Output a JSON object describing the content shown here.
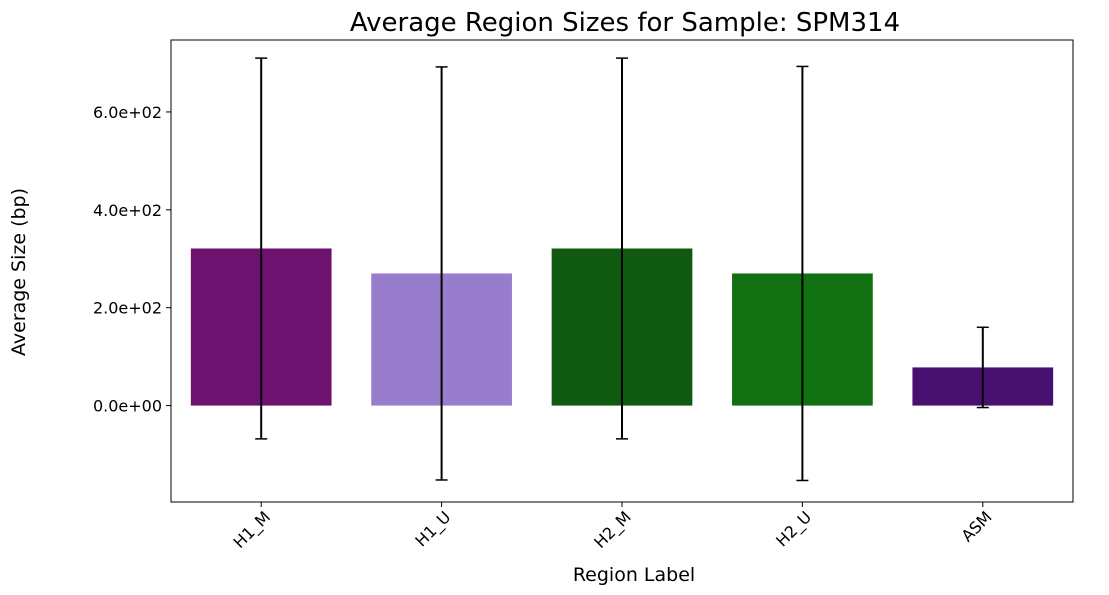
{
  "chart_data": {
    "type": "bar",
    "title": "Average Region Sizes for Sample: SPM314",
    "xlabel": "Region Label",
    "ylabel": "Average Size (bp)",
    "categories": [
      "H1_M",
      "H1_U",
      "H2_M",
      "H2_U",
      "ASM"
    ],
    "values": [
      321,
      270,
      321,
      270,
      78
    ],
    "error": [
      389,
      422,
      389,
      423,
      82
    ],
    "colors": [
      "#6e1270",
      "#977dcc",
      "#0f5a10",
      "#117011",
      "#481170"
    ],
    "ylim": [
      -197,
      747
    ],
    "yticks": [
      0,
      200,
      400,
      600
    ],
    "ytick_labels": [
      "0.0e+00",
      "2.0e+02",
      "4.0e+02",
      "6.0e+02"
    ],
    "grid": false,
    "legend": "none"
  }
}
